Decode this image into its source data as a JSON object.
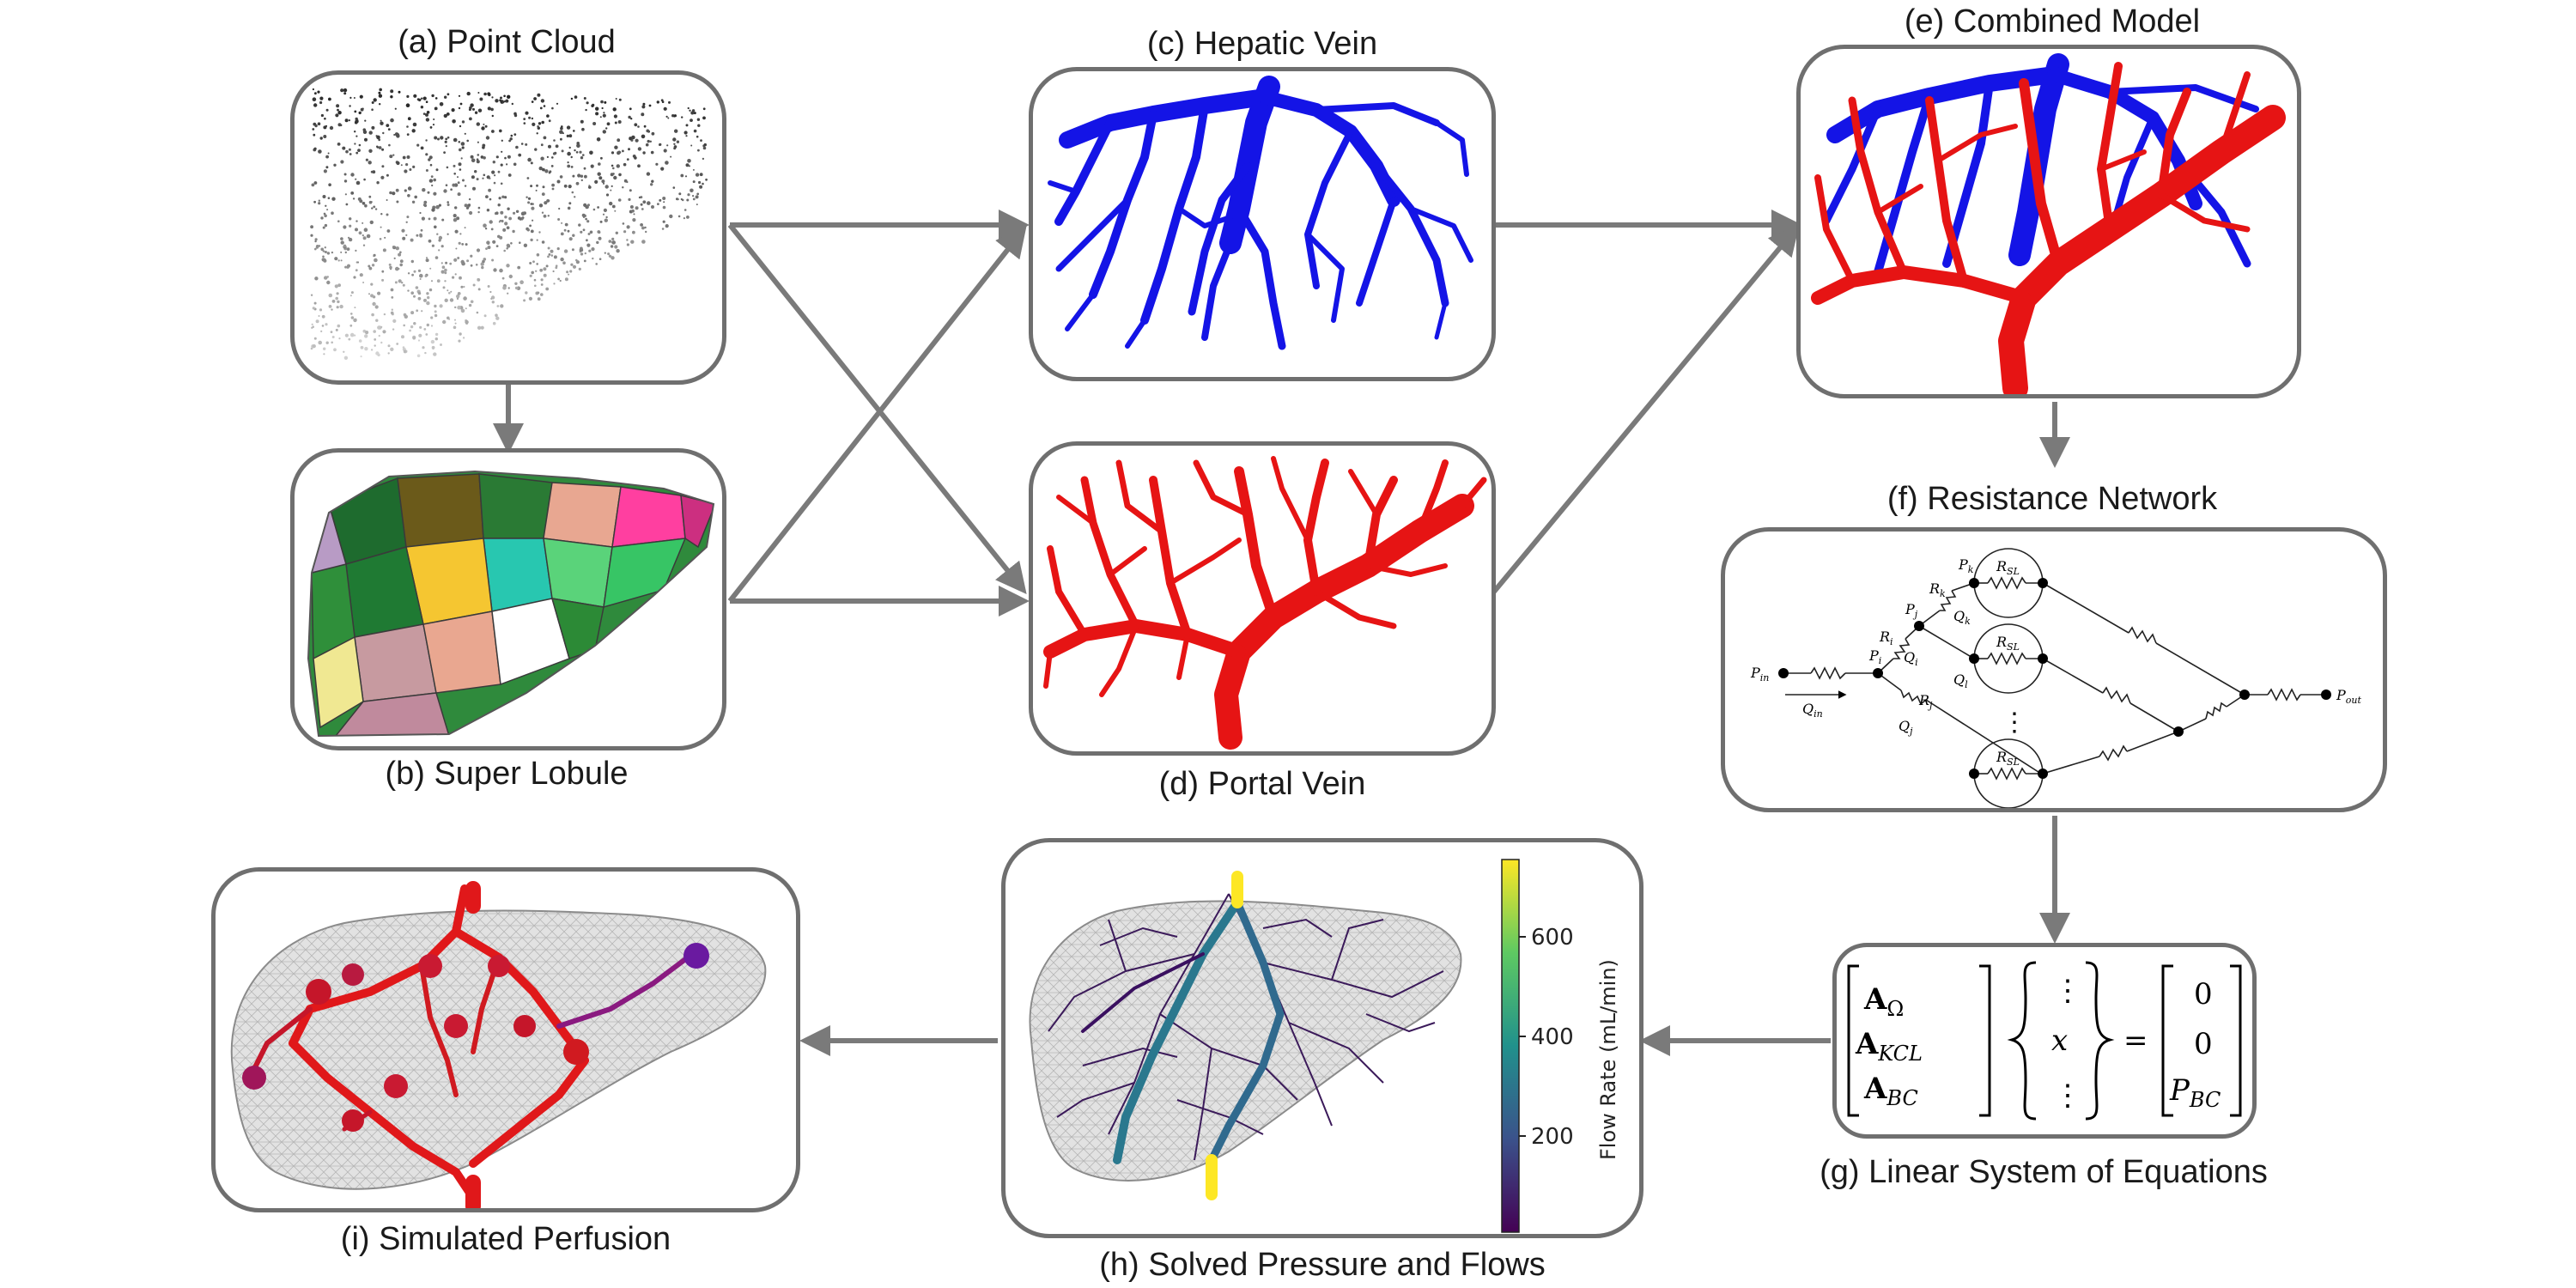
{
  "panels": {
    "a": {
      "caption": "(a) Point Cloud"
    },
    "b": {
      "caption": "(b) Super Lobule"
    },
    "c": {
      "caption": "(c) Hepatic Vein"
    },
    "d": {
      "caption": "(d) Portal Vein"
    },
    "e": {
      "caption": "(e) Combined Model"
    },
    "f": {
      "caption": "(f) Resistance Network"
    },
    "g": {
      "caption": "(g) Linear System of Equations"
    },
    "h": {
      "caption": "(h) Solved Pressure and Flows"
    },
    "i": {
      "caption": "(i) Simulated Perfusion"
    }
  },
  "network": {
    "p_in": "P",
    "p_in_sub": "in",
    "q_in": "Q",
    "q_in_sub": "in",
    "p_i": "P",
    "p_i_sub": "i",
    "r_i": "R",
    "r_i_sub": "i",
    "q_i": "Q",
    "q_i_sub": "i",
    "p_j": "P",
    "p_j_sub": "j",
    "r_j": "R",
    "r_j_sub": "j",
    "q_j": "Q",
    "q_j_sub": "j",
    "p_k": "P",
    "p_k_sub": "k",
    "r_k": "R",
    "r_k_sub": "k",
    "q_k": "Q",
    "q_k_sub": "k",
    "q_l": "Q",
    "q_l_sub": "l",
    "r_sl": "R",
    "r_sl_sub": "SL",
    "dots": "⋮",
    "p_out": "P",
    "p_out_sub": "out"
  },
  "equation": {
    "a_omega": "A",
    "a_omega_sub": "Ω",
    "a_kcl": "A",
    "a_kcl_sub": "KCL",
    "a_bc": "A",
    "a_bc_sub": "BC",
    "vdots": "⋮",
    "x": "x",
    "equals": "=",
    "zero1": "0",
    "zero2": "0",
    "p_bc": "P",
    "p_bc_sub": "BC"
  },
  "colorbar": {
    "label": "Flow Rate (mL/min)",
    "ticks": [
      "200",
      "400",
      "600"
    ],
    "colors": [
      "#440154",
      "#3b528b",
      "#21918c",
      "#5ec962",
      "#fde725"
    ]
  },
  "colors": {
    "hepatic": "#1414e6",
    "portal": "#e61414",
    "border": "#6f6f6f"
  }
}
